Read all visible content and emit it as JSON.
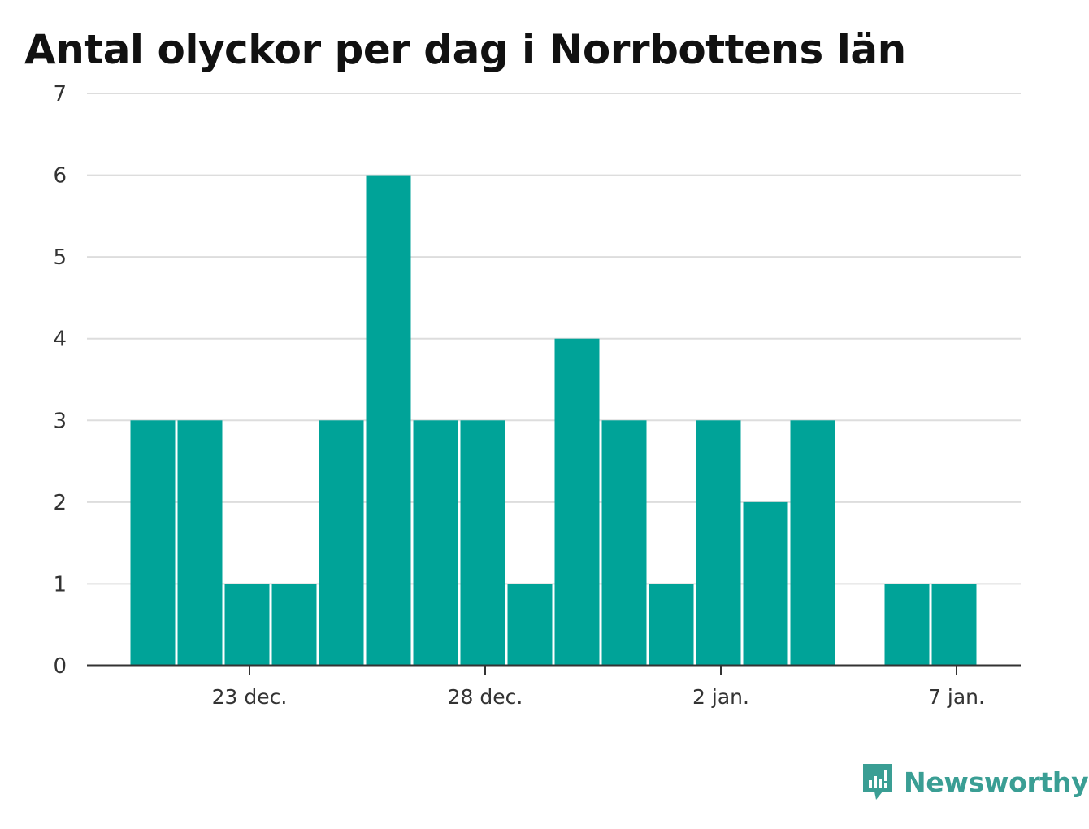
{
  "chart_data": {
    "type": "bar",
    "title": "Antal olyckor per dag i Norrbottens län",
    "xlabel": "",
    "ylabel": "",
    "x": [
      "2022-12-21",
      "2022-12-22",
      "2022-12-23",
      "2022-12-24",
      "2022-12-25",
      "2022-12-26",
      "2022-12-27",
      "2022-12-28",
      "2022-12-29",
      "2022-12-30",
      "2022-12-31",
      "2023-01-01",
      "2023-01-02",
      "2023-01-03",
      "2023-01-04",
      "2023-01-05",
      "2023-01-06",
      "2023-01-07"
    ],
    "values": [
      3,
      3,
      1,
      1,
      3,
      6,
      3,
      3,
      1,
      4,
      3,
      1,
      3,
      2,
      3,
      0,
      1,
      1
    ],
    "ylim": [
      0,
      7
    ],
    "yticks": [
      "0",
      "1",
      "2",
      "3",
      "4",
      "5",
      "6",
      "7"
    ],
    "xticks": [
      {
        "date": "2022-12-23",
        "label": "23 dec."
      },
      {
        "date": "2022-12-28",
        "label": "28 dec."
      },
      {
        "date": "2023-01-02",
        "label": "2 jan."
      },
      {
        "date": "2023-01-07",
        "label": "7 jan."
      }
    ],
    "grid": true,
    "bar_color": "#00a398"
  },
  "brand": {
    "name": "Newsworthy",
    "color": "#3a9e94",
    "icon": "bar-chart-speech-bubble-icon"
  }
}
